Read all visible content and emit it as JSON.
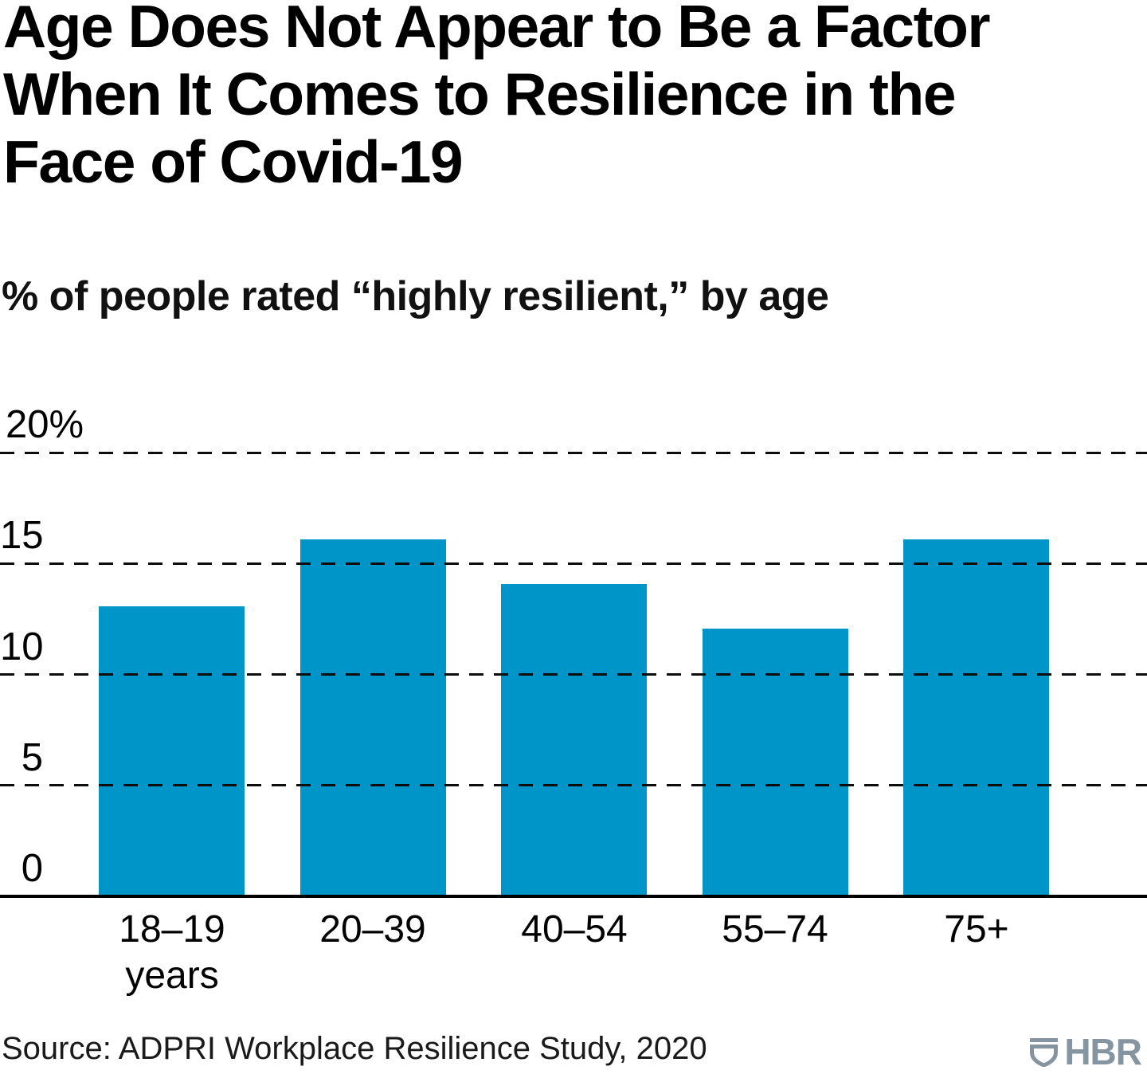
{
  "title_lines": [
    "Age Does Not Appear to Be a Factor",
    "When It Comes to Resilience in the",
    "Face of Covid-19"
  ],
  "chart_data": {
    "type": "bar",
    "title": "Age Does Not Appear to Be a Factor When It Comes to Resilience in the Face of Covid-19",
    "subtitle": "% of people rated “highly resilient,” by age",
    "categories": [
      "18–19 years",
      "20–39",
      "40–54",
      "55–74",
      "75+"
    ],
    "category_lines": [
      [
        "18–19",
        "years"
      ],
      [
        "20–39"
      ],
      [
        "40–54"
      ],
      [
        "55–74"
      ],
      [
        "75+"
      ]
    ],
    "values": [
      13,
      16,
      14,
      12,
      16
    ],
    "unit": "%",
    "xlabel": "",
    "ylabel": "",
    "ylim": [
      0,
      20
    ],
    "yticks": [
      "20%",
      "15",
      "10",
      "5",
      "0"
    ],
    "grid": "horizontal-dashed",
    "legend": "none",
    "bar_color": "#0095C8"
  },
  "footer": {
    "source": "Source: ADPRI Workplace Resilience Study, 2020",
    "logo_text": "HBR"
  },
  "colors": {
    "logo": "#8494A0",
    "grid": "#0d0d0d",
    "axis": "#000000"
  }
}
